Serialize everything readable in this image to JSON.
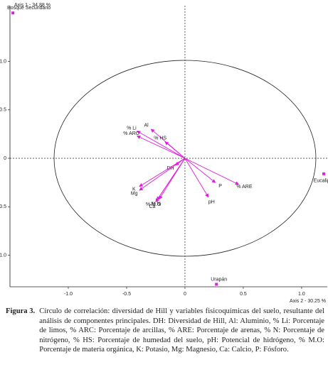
{
  "chart_data": {
    "type": "biplot",
    "y_axis_label": "Axis 1 - 34.88 %",
    "x_axis_label": "Axis 2 - 30.25 %",
    "xlim": [
      -1.5,
      1.22
    ],
    "ylim": [
      -1.326,
      1.575
    ],
    "xticks": [
      {
        "value": -1.0,
        "label": "-1.0"
      },
      -0.5,
      0,
      0.5,
      {
        "value": 1.0,
        "label": "1.0"
      }
    ],
    "yticks": [
      {
        "value": 1.0,
        "label": "1.0"
      },
      0.5,
      0,
      -0.5,
      {
        "value": -1.0,
        "label": "-1.0"
      }
    ],
    "color": "#e01ce0",
    "vectors": {
      "labels": [
        "% Li",
        "Al",
        "% ARC",
        "% HS",
        "DH",
        "K",
        "Mg",
        "% N",
        "Ca",
        "% M.O",
        "P",
        "% ARE",
        "pH"
      ],
      "x": [
        -0.41,
        -0.29,
        -0.41,
        -0.17,
        -0.08,
        -0.39,
        -0.39,
        -0.22,
        -0.25,
        -0.24,
        0.26,
        0.46,
        0.2
      ],
      "y": [
        0.28,
        0.3,
        0.23,
        0.17,
        -0.07,
        -0.29,
        -0.33,
        -0.42,
        -0.45,
        -0.43,
        -0.25,
        -0.27,
        -0.4
      ]
    },
    "points": {
      "labels": [
        "Bosque Secundario",
        "Eucalipto",
        "Urapán"
      ],
      "x": [
        -1.475,
        1.19,
        0.27
      ],
      "y": [
        1.5,
        -0.16,
        -1.3
      ]
    }
  },
  "caption": {
    "label": "Figura 3.",
    "text": "Círculo de correlación: diversidad de Hill y variables fisicoquímicas del suelo, resultante del análisis de componentes principales. DH: Diversidad de Hill, Al: Aluminio, % Li: Porcentaje de limos, % ARC: Porcentaje de arcillas, % ARE: Porcentaje de arenas, % N: Porcentaje de nitrógeno, % HS: Porcentaje de humedad del suelo, pH: Potencial de hidrógeno, % M.O: Porcentaje de materia orgánica, K: Potasio, Mg: Magnesio, Ca: Calcio, P: Fósforo."
  }
}
